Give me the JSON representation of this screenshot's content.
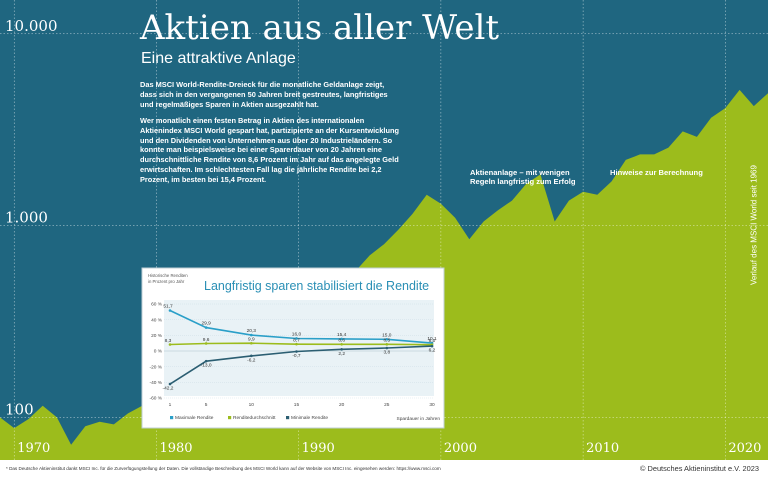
{
  "title": "Aktien aus aller Welt",
  "subtitle": "Eine attraktive Anlage",
  "intro_paragraphs": [
    "Das MSCI World-Rendite-Dreieck für die monatliche Geldanlage zeigt, dass sich in den vergangenen 50 Jahren breit gestreutes, langfristiges und regelmäßiges Sparen in Aktien ausgezahlt hat.",
    "Wer monatlich einen festen Betrag in Aktien des internationalen Aktienindex MSCI World gespart hat, partizipierte an der Kursentwicklung und den Dividenden von Unternehmen aus über 20 Industrieländern. So konnte man beispielsweise bei einer Sparerdauer von 20 Jahren eine durchschnittliche Rendite von 8,6 Prozent im Jahr auf das angelegte Geld erwirtschaften. Im schlechtesten Fall lag die jährliche Rendite bei 2,2 Prozent, im besten bei 15,4 Prozent."
  ],
  "column_headings": {
    "middle": "Aktienanlage – mit wenigen Regeln langfristig zum Erfolg",
    "right": "Hinweise zur Berechnung"
  },
  "vertical_label": "Verlauf des MSCI World seit 1969",
  "footer_note": "* Das Deutsche Aktieninstitut dankt MSCI Inc. für die Zurverfügungstellung der Daten. Die vollständige Beschreibung des MSCI World kann auf der Website von MSCI Inc. eingesehen werden: https://www.msci.com",
  "copyright": "© Deutsches Aktieninstitut e.V. 2023",
  "colors": {
    "background": "#1f6680",
    "green": "#9cbc1c",
    "inset_bg": "#ffffff",
    "inset_border": "#bfcfd6",
    "max": "#2a9fc8",
    "avg": "#9cbc1c",
    "min": "#2b5e72"
  },
  "chart_data": [
    {
      "type": "area",
      "title": "",
      "yscale": "log",
      "ylim": [
        60,
        15000
      ],
      "xlim": [
        1969,
        2023
      ],
      "y_ticks": [
        {
          "value": 100,
          "label": "100"
        },
        {
          "value": 1000,
          "label": "1.000"
        },
        {
          "value": 10000,
          "label": "10.000"
        }
      ],
      "x_ticks": [
        {
          "value": 1970,
          "label": "1970"
        },
        {
          "value": 1980,
          "label": "1980"
        },
        {
          "value": 1990,
          "label": "1990"
        },
        {
          "value": 2000,
          "label": "2000"
        },
        {
          "value": 2010,
          "label": "2010"
        },
        {
          "value": 2020,
          "label": "2020"
        }
      ],
      "x": [
        1969,
        1970,
        1971,
        1972,
        1973,
        1974,
        1975,
        1976,
        1977,
        1978,
        1979,
        1980,
        1981,
        1982,
        1983,
        1984,
        1985,
        1986,
        1987,
        1988,
        1989,
        1990,
        1991,
        1992,
        1993,
        1994,
        1995,
        1996,
        1997,
        1998,
        1999,
        2000,
        2001,
        2002,
        2003,
        2004,
        2005,
        2006,
        2007,
        2008,
        2009,
        2010,
        2011,
        2012,
        2013,
        2014,
        2015,
        2016,
        2017,
        2018,
        2019,
        2020,
        2021,
        2022,
        2023
      ],
      "y": [
        100,
        88,
        98,
        115,
        100,
        72,
        90,
        95,
        92,
        105,
        115,
        135,
        130,
        140,
        170,
        175,
        240,
        320,
        360,
        420,
        500,
        400,
        470,
        450,
        560,
        580,
        700,
        800,
        950,
        1150,
        1450,
        1300,
        1100,
        850,
        1050,
        1200,
        1350,
        1650,
        1850,
        1050,
        1350,
        1500,
        1450,
        1700,
        2200,
        2350,
        2350,
        2550,
        3100,
        2900,
        3650,
        4100,
        5100,
        4200,
        4900
      ]
    },
    {
      "type": "line",
      "title": "Langfristig sparen stabilisiert die Rendite",
      "ylabel": "Historische Renditen in Prozent pro Jahr",
      "xlabel": "Spardauer in Jahren",
      "ylim": [
        -60,
        60
      ],
      "y_ticks": [
        "60 %",
        "40 %",
        "20 %",
        "0 %",
        "-20 %",
        "-40 %",
        "-60 %"
      ],
      "x": [
        1,
        5,
        10,
        15,
        20,
        25,
        30
      ],
      "series": [
        {
          "name": "Maximale Rendite",
          "values": [
            51.7,
            29.9,
            20.3,
            16.0,
            15.4,
            15.0,
            10.1
          ],
          "labels": [
            "51,7",
            "29,9",
            "20,3",
            "16,0",
            "15,4",
            "15,0",
            "10,1"
          ]
        },
        {
          "name": "Renditedurchschnitt",
          "values": [
            8.3,
            9.6,
            9.9,
            8.7,
            8.6,
            8.5,
            8.0
          ],
          "labels": [
            "8,3",
            "9,6",
            "9,9",
            "8,7",
            "8,6",
            "8,5",
            "8,0"
          ]
        },
        {
          "name": "Minimale Rendite",
          "values": [
            -42.2,
            -13.0,
            -6.2,
            -0.7,
            2.2,
            3.8,
            6.2
          ],
          "labels": [
            "-42,2",
            "-13,0",
            "-6,2",
            "-0,7",
            "2,2",
            "3,8",
            "6,2"
          ]
        }
      ]
    }
  ]
}
